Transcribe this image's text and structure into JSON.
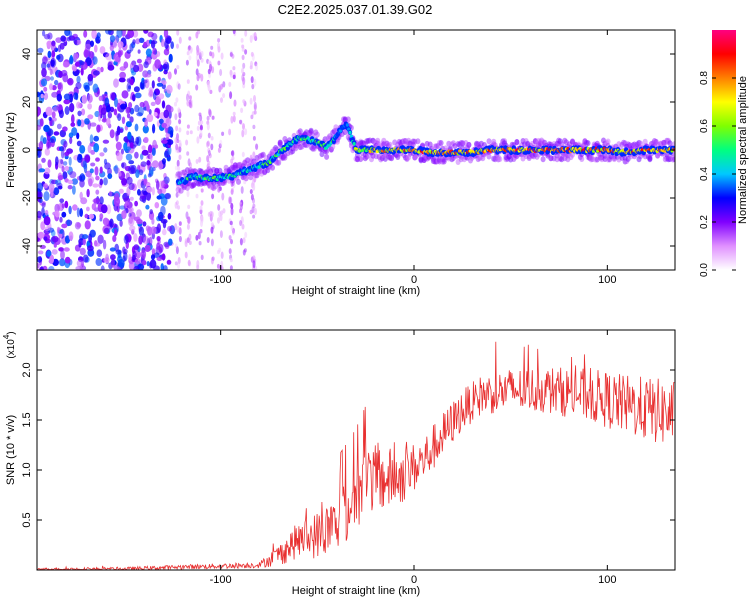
{
  "title": "C2E2.2025.037.01.39.G02",
  "chart_data": [
    {
      "type": "heatmap",
      "xlabel": "Height of straight line (km)",
      "ylabel": "Frequency (Hz)",
      "xlim": [
        -195,
        135
      ],
      "ylim": [
        -50,
        50
      ],
      "xticks": [
        -100,
        0,
        100
      ],
      "yticks": [
        -40,
        -20,
        0,
        20,
        40
      ],
      "xtick_labels": [
        "-100",
        "0",
        "100"
      ],
      "ytick_labels": [
        "-40",
        "-20",
        "0",
        "20",
        "40"
      ],
      "colorbar": {
        "label": "Normalized spectral amplitude",
        "range": [
          0,
          1
        ],
        "ticks": [
          0.0,
          0.2,
          0.4,
          0.6,
          0.8
        ],
        "tick_labels": [
          "0.0",
          "0.2",
          "0.4",
          "0.6",
          "0.8"
        ],
        "colors": [
          "#ffffff",
          "#e090ff",
          "#8000ff",
          "#0000ff",
          "#00c8ff",
          "#00ff80",
          "#80ff00",
          "#ffff00",
          "#ff8000",
          "#ff0000",
          "#ff0080"
        ]
      },
      "ridge": [
        {
          "x": -122,
          "y": -14,
          "a": 0.45
        },
        {
          "x": -115,
          "y": -11,
          "a": 0.55
        },
        {
          "x": -105,
          "y": -12,
          "a": 0.55
        },
        {
          "x": -95,
          "y": -11,
          "a": 0.5
        },
        {
          "x": -85,
          "y": -8,
          "a": 0.5
        },
        {
          "x": -75,
          "y": -5,
          "a": 0.55
        },
        {
          "x": -68,
          "y": 0,
          "a": 0.55
        },
        {
          "x": -60,
          "y": 5,
          "a": 0.55
        },
        {
          "x": -52,
          "y": 4,
          "a": 0.55
        },
        {
          "x": -45,
          "y": 1,
          "a": 0.6
        },
        {
          "x": -35,
          "y": 11,
          "a": 0.35
        },
        {
          "x": -30,
          "y": 0,
          "a": 0.65
        },
        {
          "x": -20,
          "y": 0,
          "a": 0.75
        },
        {
          "x": -10,
          "y": 0,
          "a": 0.8
        },
        {
          "x": 0,
          "y": 0,
          "a": 0.85
        },
        {
          "x": 10,
          "y": -1,
          "a": 0.85
        },
        {
          "x": 20,
          "y": -1,
          "a": 0.85
        },
        {
          "x": 30,
          "y": -1,
          "a": 0.85
        },
        {
          "x": 40,
          "y": 0,
          "a": 0.9
        },
        {
          "x": 50,
          "y": 0,
          "a": 0.9
        },
        {
          "x": 60,
          "y": 0,
          "a": 0.9
        },
        {
          "x": 70,
          "y": 0,
          "a": 0.9
        },
        {
          "x": 80,
          "y": 0,
          "a": 0.85
        },
        {
          "x": 90,
          "y": 0,
          "a": 0.85
        },
        {
          "x": 100,
          "y": 0,
          "a": 0.85
        },
        {
          "x": 110,
          "y": -1,
          "a": 0.85
        },
        {
          "x": 120,
          "y": 0,
          "a": 0.85
        },
        {
          "x": 130,
          "y": 0,
          "a": 0.8
        }
      ],
      "noise_region": {
        "x_from": -195,
        "x_to": -125,
        "level": 0.3
      },
      "sparse_region": {
        "x_from": -125,
        "x_to": -80,
        "level": 0.12
      }
    },
    {
      "type": "line",
      "xlabel": "Height of straight line (km)",
      "ylabel": "SNR (10 * v/v)",
      "yscale_label": "(x10",
      "yscale_exp": "4",
      "xlim": [
        -195,
        135
      ],
      "ylim": [
        0,
        2.4
      ],
      "xticks": [
        -100,
        0,
        100
      ],
      "yticks": [
        0.5,
        1.0,
        1.5,
        2.0
      ],
      "xtick_labels": [
        "-100",
        "0",
        "100"
      ],
      "ytick_labels": [
        "0.5",
        "1.0",
        "1.5",
        "2.0"
      ],
      "color": "#e83030",
      "envelope": [
        {
          "x": -195,
          "y": 0.01
        },
        {
          "x": -150,
          "y": 0.01
        },
        {
          "x": -120,
          "y": 0.03
        },
        {
          "x": -100,
          "y": 0.04
        },
        {
          "x": -80,
          "y": 0.05
        },
        {
          "x": -70,
          "y": 0.15
        },
        {
          "x": -60,
          "y": 0.3
        },
        {
          "x": -50,
          "y": 0.35
        },
        {
          "x": -40,
          "y": 0.45
        },
        {
          "x": -30,
          "y": 0.7
        },
        {
          "x": -25,
          "y": 0.9
        },
        {
          "x": -15,
          "y": 0.9
        },
        {
          "x": -5,
          "y": 0.95
        },
        {
          "x": 5,
          "y": 1.1
        },
        {
          "x": 15,
          "y": 1.35
        },
        {
          "x": 25,
          "y": 1.6
        },
        {
          "x": 35,
          "y": 1.75
        },
        {
          "x": 50,
          "y": 1.8
        },
        {
          "x": 70,
          "y": 1.8
        },
        {
          "x": 90,
          "y": 1.75
        },
        {
          "x": 110,
          "y": 1.65
        },
        {
          "x": 135,
          "y": 1.55
        }
      ],
      "noise_amplitude": [
        {
          "x": -195,
          "y": 0.01
        },
        {
          "x": -80,
          "y": 0.03
        },
        {
          "x": -65,
          "y": 0.15
        },
        {
          "x": -40,
          "y": 0.3
        },
        {
          "x": -20,
          "y": 0.35
        },
        {
          "x": 0,
          "y": 0.25
        },
        {
          "x": 30,
          "y": 0.2
        },
        {
          "x": 80,
          "y": 0.25
        },
        {
          "x": 135,
          "y": 0.35
        }
      ]
    }
  ]
}
